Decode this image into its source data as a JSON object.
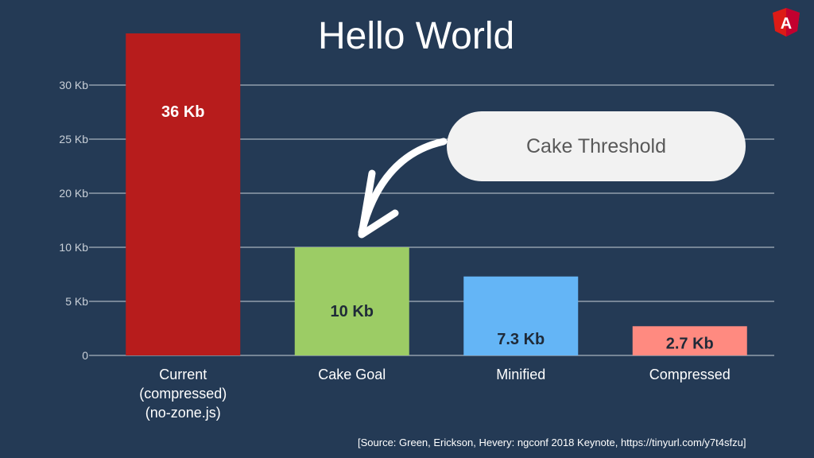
{
  "chart_data": {
    "type": "bar",
    "title": "Hello World",
    "categories": [
      "Current\n(compressed)\n(no-zone.js)",
      "Cake Goal",
      "Minified",
      "Compressed"
    ],
    "values": [
      36,
      10,
      7.3,
      2.7
    ],
    "data_labels": [
      "36 Kb",
      "10 Kb",
      "7.3 Kb",
      "2.7 Kb"
    ],
    "bar_colors": [
      "#b71c1c",
      "#9ccc65",
      "#64b5f6",
      "#ff8a80"
    ],
    "label_colors": [
      "#ffffff",
      "#1f2a38",
      "#1f2a38",
      "#1f2a38"
    ],
    "yticks": [
      {
        "value": 0,
        "label": "0"
      },
      {
        "value": 5,
        "label": "5 Kb"
      },
      {
        "value": 10,
        "label": "10 Kb"
      },
      {
        "value": 20,
        "label": "20 Kb"
      },
      {
        "value": 25,
        "label": "25 Kb"
      },
      {
        "value": 30,
        "label": "30 Kb"
      }
    ],
    "xlabel": "",
    "ylabel": "",
    "grid": true,
    "annotation": "Cake Threshold"
  },
  "source": "[Source: Green, Erickson, Hevery: ngconf 2018 Keynote, https://tinyurl.com/y7t4sfzu]",
  "logo": {
    "icon": "angular-logo-icon",
    "letter": "A",
    "color": "#dd1b16"
  }
}
